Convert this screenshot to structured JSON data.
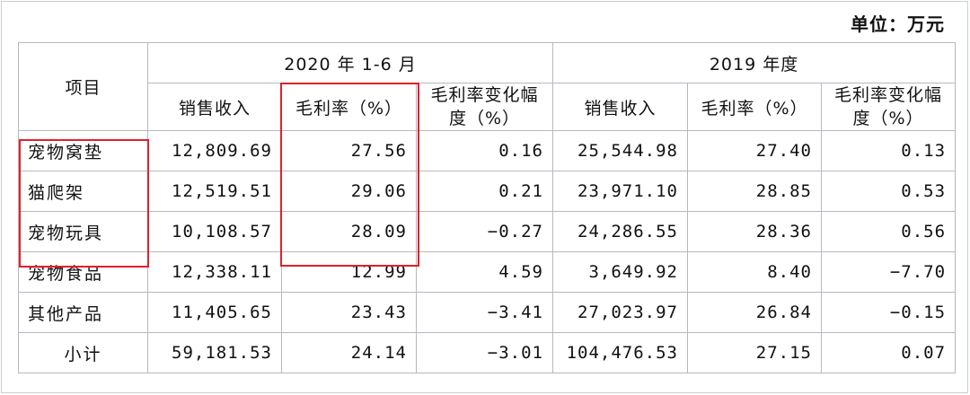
{
  "unit_label": "单位：万元",
  "header": {
    "item_col": "项目",
    "period_2020": "2020 年 1-6 月",
    "period_2019": "2019 年度",
    "cols_2020": [
      "销售收入",
      "毛利率（%）",
      "毛利率变化幅度（%）"
    ],
    "cols_2019": [
      "销售收入",
      "毛利率（%）",
      "毛利率变化幅度（%）"
    ]
  },
  "rows": [
    {
      "item": "宠物窝垫",
      "rev_2020": "12,809.69",
      "gm_2020": "27.56",
      "chg_2020": "0.16",
      "rev_2019": "25,544.98",
      "gm_2019": "27.40",
      "chg_2019": "0.13"
    },
    {
      "item": "猫爬架",
      "rev_2020": "12,519.51",
      "gm_2020": "29.06",
      "chg_2020": "0.21",
      "rev_2019": "23,971.10",
      "gm_2019": "28.85",
      "chg_2019": "0.53"
    },
    {
      "item": "宠物玩具",
      "rev_2020": "10,108.57",
      "gm_2020": "28.09",
      "chg_2020": "−0.27",
      "rev_2019": "24,286.55",
      "gm_2019": "28.36",
      "chg_2019": "0.56"
    },
    {
      "item": "宠物食品",
      "rev_2020": "12,338.11",
      "gm_2020": "12.99",
      "chg_2020": "4.59",
      "rev_2019": "3,649.92",
      "gm_2019": "8.40",
      "chg_2019": "−7.70"
    },
    {
      "item": "其他产品",
      "rev_2020": "11,405.65",
      "gm_2020": "23.43",
      "chg_2020": "−3.41",
      "rev_2019": "27,023.97",
      "gm_2019": "26.84",
      "chg_2019": "−0.15"
    },
    {
      "item": "小计",
      "rev_2020": "59,181.53",
      "gm_2020": "24.14",
      "chg_2020": "−3.01",
      "rev_2019": "104,476.53",
      "gm_2019": "27.15",
      "chg_2019": "0.07"
    }
  ],
  "highlight_color": "#e0202a"
}
